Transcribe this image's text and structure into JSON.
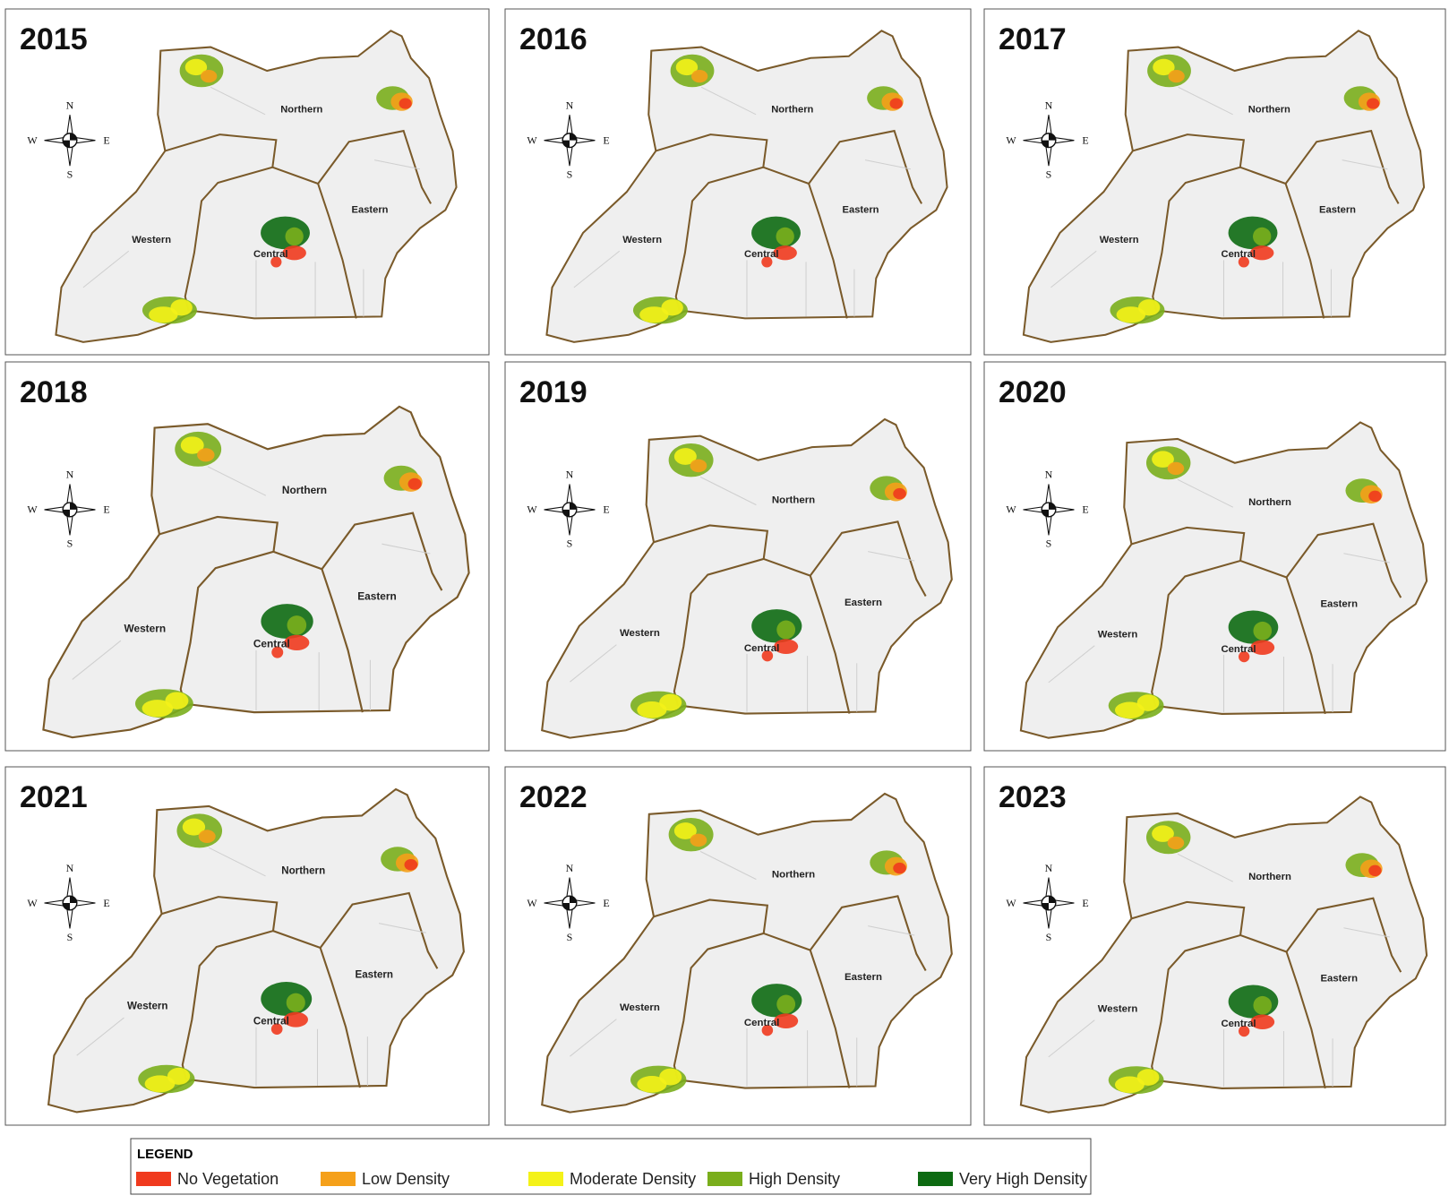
{
  "panels": [
    {
      "year": "2015"
    },
    {
      "year": "2016"
    },
    {
      "year": "2017"
    },
    {
      "year": "2018"
    },
    {
      "year": "2019"
    },
    {
      "year": "2020"
    },
    {
      "year": "2021"
    },
    {
      "year": "2022"
    },
    {
      "year": "2023"
    }
  ],
  "regions": {
    "northern": "Northern",
    "western": "Western",
    "central": "Central",
    "eastern": "Eastern"
  },
  "compass": {
    "n": "N",
    "s": "S",
    "e": "E",
    "w": "W"
  },
  "legend": {
    "title": "LEGEND",
    "items": [
      {
        "label": "No Vegetation",
        "color": "#f03a1e"
      },
      {
        "label": "Low Density",
        "color": "#f5a01a"
      },
      {
        "label": "Moderate Density",
        "color": "#f4f218"
      },
      {
        "label": "High Density",
        "color": "#7aae1c"
      },
      {
        "label": "Very High Density",
        "color": "#0d6a12"
      }
    ]
  }
}
